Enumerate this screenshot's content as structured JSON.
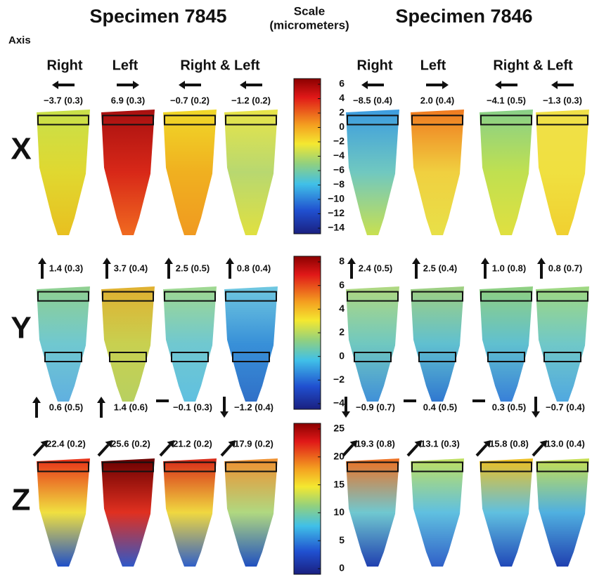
{
  "header": {
    "specimens": [
      "Specimen 7845",
      "Specimen 7846"
    ],
    "scale_title": [
      "Scale",
      "(micrometers)"
    ],
    "axis_label": "Axis"
  },
  "column_headers": [
    "Right",
    "Left",
    "Right & Left",
    "Right",
    "Left",
    "Right & Left"
  ],
  "rows": [
    {
      "label": "X",
      "scale_ticks": [
        "6",
        "4",
        "2",
        "0",
        "−2",
        "−4",
        "−6",
        "−8",
        "−10",
        "−12",
        "−14"
      ],
      "top": [
        "−3.7 (0.3)",
        "6.9 (0.3)",
        "−0.7 (0.2)",
        "−1.2 (0.2)",
        "−8.5 (0.4)",
        "2.0 (0.4)",
        "−4.1 (0.5)",
        "−1.3 (0.3)"
      ]
    },
    {
      "label": "Y",
      "scale_ticks": [
        "8",
        "6",
        "4",
        "2",
        "0",
        "−2",
        "−4"
      ],
      "top": [
        "1.4 (0.3)",
        "3.7 (0.4)",
        "2.5 (0.5)",
        "0.8 (0.4)",
        "2.4 (0.5)",
        "2.5 (0.4)",
        "1.0 (0.8)",
        "0.8 (0.7)"
      ],
      "bottom": [
        "0.6 (0.5)",
        "1.4 (0.6)",
        "−0.1 (0.3)",
        "−1.2 (0.4)",
        "−0.9 (0.7)",
        "0.4 (0.5)",
        "0.3 (0.5)",
        "−0.7 (0.4)"
      ]
    },
    {
      "label": "Z",
      "scale_ticks": [
        "25",
        "20",
        "15",
        "10",
        "5",
        "0"
      ],
      "top": [
        "22.4 (0.2)",
        "25.6 (0.2)",
        "21.2 (0.2)",
        "17.9 (0.2)",
        "19.3 (0.8)",
        "13.1 (0.3)",
        "15.8 (0.8)",
        "13.0 (0.4)"
      ]
    }
  ]
}
